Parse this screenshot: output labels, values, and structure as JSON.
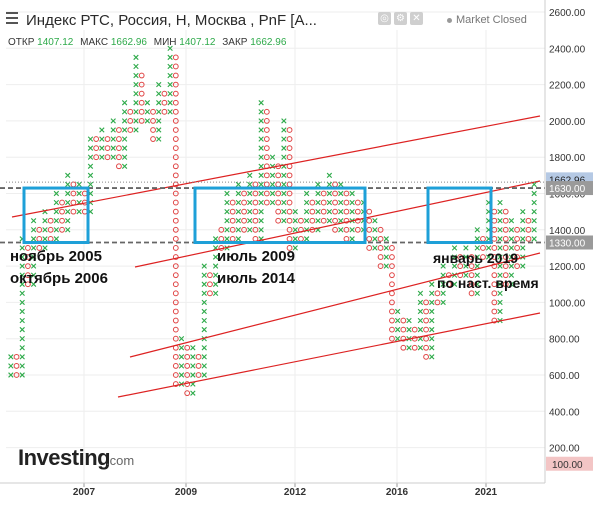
{
  "header": {
    "title": "Индекс РТС, Россия, Н, Москва , PnF [A...",
    "open_label": "ОТКР",
    "open": "1407.12",
    "high_label": "МАКС",
    "high": "1662.96",
    "low_label": "МИН",
    "low": "1407.12",
    "close_label": "ЗАКР",
    "close": "1662.96",
    "market_status": "Market Closed",
    "icons": [
      "eye-off-icon",
      "settings-icon",
      "close-icon",
      "menu-icon"
    ]
  },
  "logo": {
    "text": "Investing",
    "suffix": ".com"
  },
  "annotations": [
    {
      "line1": "ноябрь 2005",
      "line2": "октябрь 2006"
    },
    {
      "line1": "июль 2009",
      "line2": "июль 2014"
    },
    {
      "line1": "январь 2019",
      "line2": "по наст. время"
    }
  ],
  "colors": {
    "x_mark": "#2eaa4a",
    "o_mark": "#e04646",
    "channel": "#dd2222",
    "box": "#1ea0d8",
    "level": "#666666",
    "last_price": "#b5c9e4"
  },
  "chart_data": {
    "type": "point_and_figure",
    "title": "Индекс РТС, Россия, Н, Москва , PnF [A...",
    "y_axis": {
      "min": 100,
      "max": 2600,
      "ticks": [
        "2600.00",
        "2400.00",
        "2200.00",
        "2000.00",
        "1800.00",
        "1600.00",
        "1400.00",
        "1200.00",
        "1000.00",
        "800.00",
        "600.00",
        "400.00",
        "200.00"
      ]
    },
    "x_axis": {
      "ticks": [
        "2007",
        "2009",
        "2012",
        "2016",
        "2021"
      ]
    },
    "last_price": "1662.96",
    "levels": [
      {
        "value": 1630,
        "label": "1630.00"
      },
      {
        "value": 1330,
        "label": "1330.00"
      }
    ],
    "bottom_marker": "100.00",
    "columns": [
      {
        "type": "X",
        "low": 600,
        "high": 700
      },
      {
        "type": "O",
        "low": 600,
        "high": 700
      },
      {
        "type": "X",
        "low": 600,
        "high": 1350
      },
      {
        "type": "O",
        "low": 1100,
        "high": 1300
      },
      {
        "type": "X",
        "low": 1100,
        "high": 1450
      },
      {
        "type": "O",
        "low": 1300,
        "high": 1400
      },
      {
        "type": "X",
        "low": 1300,
        "high": 1500
      },
      {
        "type": "O",
        "low": 1350,
        "high": 1450
      },
      {
        "type": "X",
        "low": 1350,
        "high": 1600
      },
      {
        "type": "O",
        "low": 1400,
        "high": 1550
      },
      {
        "type": "X",
        "low": 1400,
        "high": 1700
      },
      {
        "type": "O",
        "low": 1500,
        "high": 1650
      },
      {
        "type": "X",
        "low": 1500,
        "high": 1650
      },
      {
        "type": "O",
        "low": 1500,
        "high": 1600
      },
      {
        "type": "X",
        "low": 1500,
        "high": 1900
      },
      {
        "type": "O",
        "low": 1800,
        "high": 1900
      },
      {
        "type": "X",
        "low": 1800,
        "high": 1950
      },
      {
        "type": "O",
        "low": 1800,
        "high": 1900
      },
      {
        "type": "X",
        "low": 1800,
        "high": 2000
      },
      {
        "type": "O",
        "low": 1750,
        "high": 1950
      },
      {
        "type": "X",
        "low": 1750,
        "high": 2100
      },
      {
        "type": "O",
        "low": 1950,
        "high": 2050
      },
      {
        "type": "X",
        "low": 1950,
        "high": 2350
      },
      {
        "type": "O",
        "low": 2000,
        "high": 2250
      },
      {
        "type": "X",
        "low": 2000,
        "high": 2100
      },
      {
        "type": "O",
        "low": 1900,
        "high": 2050
      },
      {
        "type": "X",
        "low": 1900,
        "high": 2200
      },
      {
        "type": "O",
        "low": 2050,
        "high": 2150
      },
      {
        "type": "X",
        "low": 2050,
        "high": 2400
      },
      {
        "type": "O",
        "low": 550,
        "high": 2350
      },
      {
        "type": "X",
        "low": 550,
        "high": 800
      },
      {
        "type": "O",
        "low": 500,
        "high": 750
      },
      {
        "type": "X",
        "low": 500,
        "high": 750
      },
      {
        "type": "O",
        "low": 600,
        "high": 700
      },
      {
        "type": "X",
        "low": 600,
        "high": 1200
      },
      {
        "type": "O",
        "low": 1050,
        "high": 1150
      },
      {
        "type": "X",
        "low": 1050,
        "high": 1350
      },
      {
        "type": "O",
        "low": 1300,
        "high": 1400
      },
      {
        "type": "X",
        "low": 1300,
        "high": 1600
      },
      {
        "type": "O",
        "low": 1350,
        "high": 1550
      },
      {
        "type": "X",
        "low": 1350,
        "high": 1650
      },
      {
        "type": "O",
        "low": 1400,
        "high": 1600
      },
      {
        "type": "X",
        "low": 1400,
        "high": 1700
      },
      {
        "type": "O",
        "low": 1350,
        "high": 1650
      },
      {
        "type": "X",
        "low": 1350,
        "high": 2100
      },
      {
        "type": "O",
        "low": 1550,
        "high": 2050
      },
      {
        "type": "X",
        "low": 1550,
        "high": 1800
      },
      {
        "type": "O",
        "low": 1450,
        "high": 1750
      },
      {
        "type": "X",
        "low": 1450,
        "high": 2000
      },
      {
        "type": "O",
        "low": 1300,
        "high": 1950
      },
      {
        "type": "X",
        "low": 1300,
        "high": 1500
      },
      {
        "type": "O",
        "low": 1350,
        "high": 1450
      },
      {
        "type": "X",
        "low": 1350,
        "high": 1600
      },
      {
        "type": "O",
        "low": 1400,
        "high": 1550
      },
      {
        "type": "X",
        "low": 1400,
        "high": 1650
      },
      {
        "type": "O",
        "low": 1450,
        "high": 1600
      },
      {
        "type": "X",
        "low": 1450,
        "high": 1700
      },
      {
        "type": "O",
        "low": 1400,
        "high": 1650
      },
      {
        "type": "X",
        "low": 1400,
        "high": 1650
      },
      {
        "type": "O",
        "low": 1350,
        "high": 1600
      },
      {
        "type": "X",
        "low": 1350,
        "high": 1600
      },
      {
        "type": "O",
        "low": 1400,
        "high": 1550
      },
      {
        "type": "X",
        "low": 1400,
        "high": 1550
      },
      {
        "type": "O",
        "low": 1300,
        "high": 1500
      },
      {
        "type": "X",
        "low": 1300,
        "high": 1450
      },
      {
        "type": "O",
        "low": 1200,
        "high": 1400
      },
      {
        "type": "X",
        "low": 1200,
        "high": 1350
      },
      {
        "type": "O",
        "low": 800,
        "high": 1300
      },
      {
        "type": "X",
        "low": 800,
        "high": 950
      },
      {
        "type": "O",
        "low": 750,
        "high": 900
      },
      {
        "type": "X",
        "low": 750,
        "high": 900
      },
      {
        "type": "O",
        "low": 750,
        "high": 850
      },
      {
        "type": "X",
        "low": 750,
        "high": 1050
      },
      {
        "type": "O",
        "low": 700,
        "high": 1000
      },
      {
        "type": "X",
        "low": 700,
        "high": 1100
      },
      {
        "type": "O",
        "low": 1000,
        "high": 1050
      },
      {
        "type": "X",
        "low": 1000,
        "high": 1200
      },
      {
        "type": "O",
        "low": 1100,
        "high": 1150
      },
      {
        "type": "X",
        "low": 1100,
        "high": 1300
      },
      {
        "type": "O",
        "low": 1150,
        "high": 1250
      },
      {
        "type": "X",
        "low": 1150,
        "high": 1300
      },
      {
        "type": "O",
        "low": 1050,
        "high": 1250
      },
      {
        "type": "X",
        "low": 1050,
        "high": 1400
      },
      {
        "type": "O",
        "low": 1250,
        "high": 1350
      },
      {
        "type": "X",
        "low": 1250,
        "high": 1550
      },
      {
        "type": "O",
        "low": 900,
        "high": 1500
      },
      {
        "type": "X",
        "low": 900,
        "high": 1550
      },
      {
        "type": "O",
        "low": 1100,
        "high": 1500
      },
      {
        "type": "X",
        "low": 1100,
        "high": 1450
      },
      {
        "type": "O",
        "low": 1200,
        "high": 1400
      },
      {
        "type": "X",
        "low": 1200,
        "high": 1500
      },
      {
        "type": "O",
        "low": 1350,
        "high": 1450
      },
      {
        "type": "X",
        "low": 1350,
        "high": 1663
      }
    ]
  }
}
